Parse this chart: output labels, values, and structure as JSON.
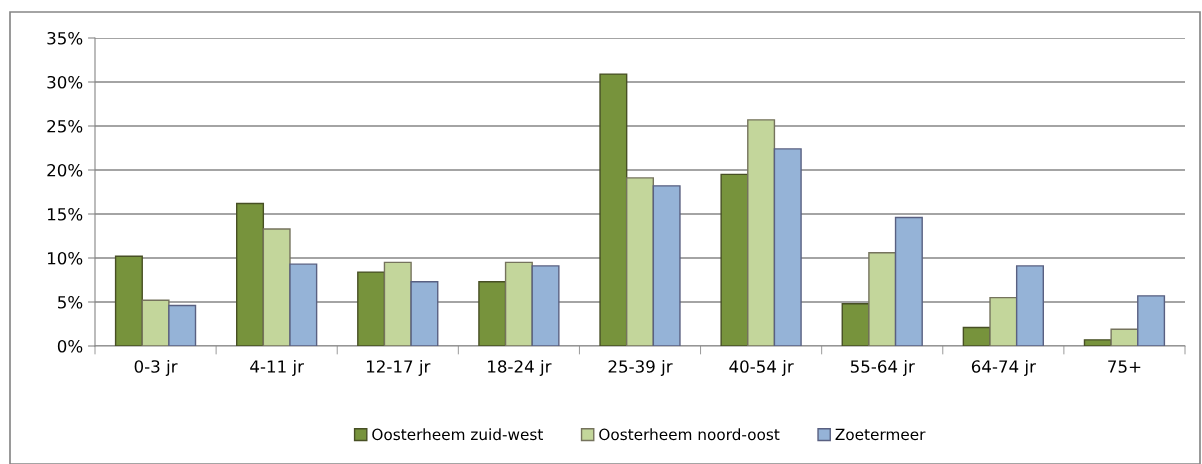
{
  "chart_data": {
    "type": "bar",
    "categories": [
      "0-3 jr",
      "4-11 jr",
      "12-17 jr",
      "18-24 jr",
      "25-39 jr",
      "40-54 jr",
      "55-64 jr",
      "64-74 jr",
      "75+"
    ],
    "series": [
      {
        "name": "Oosterheem zuid-west",
        "color": "#77933c",
        "values": [
          10.2,
          16.2,
          8.4,
          7.3,
          30.9,
          19.5,
          4.8,
          2.1,
          0.7
        ]
      },
      {
        "name": "Oosterheem noord-oost",
        "color": "#c3d69b",
        "values": [
          5.2,
          13.3,
          9.5,
          9.5,
          19.1,
          25.7,
          10.6,
          5.5,
          1.9
        ]
      },
      {
        "name": "Zoetermeer",
        "color": "#95b3d7",
        "values": [
          4.6,
          9.3,
          7.3,
          9.1,
          18.2,
          22.4,
          14.6,
          9.1,
          5.7
        ]
      }
    ],
    "ylim": [
      0,
      35
    ],
    "yticks": [
      {
        "value": 0,
        "label": "0%"
      },
      {
        "value": 5,
        "label": "5%"
      },
      {
        "value": 10,
        "label": "10%"
      },
      {
        "value": 15,
        "label": "15%"
      },
      {
        "value": 20,
        "label": "20%"
      },
      {
        "value": 25,
        "label": "25%"
      },
      {
        "value": 30,
        "label": "30%"
      },
      {
        "value": 35,
        "label": "35%"
      }
    ],
    "grid": "y",
    "legend": "bottom"
  }
}
